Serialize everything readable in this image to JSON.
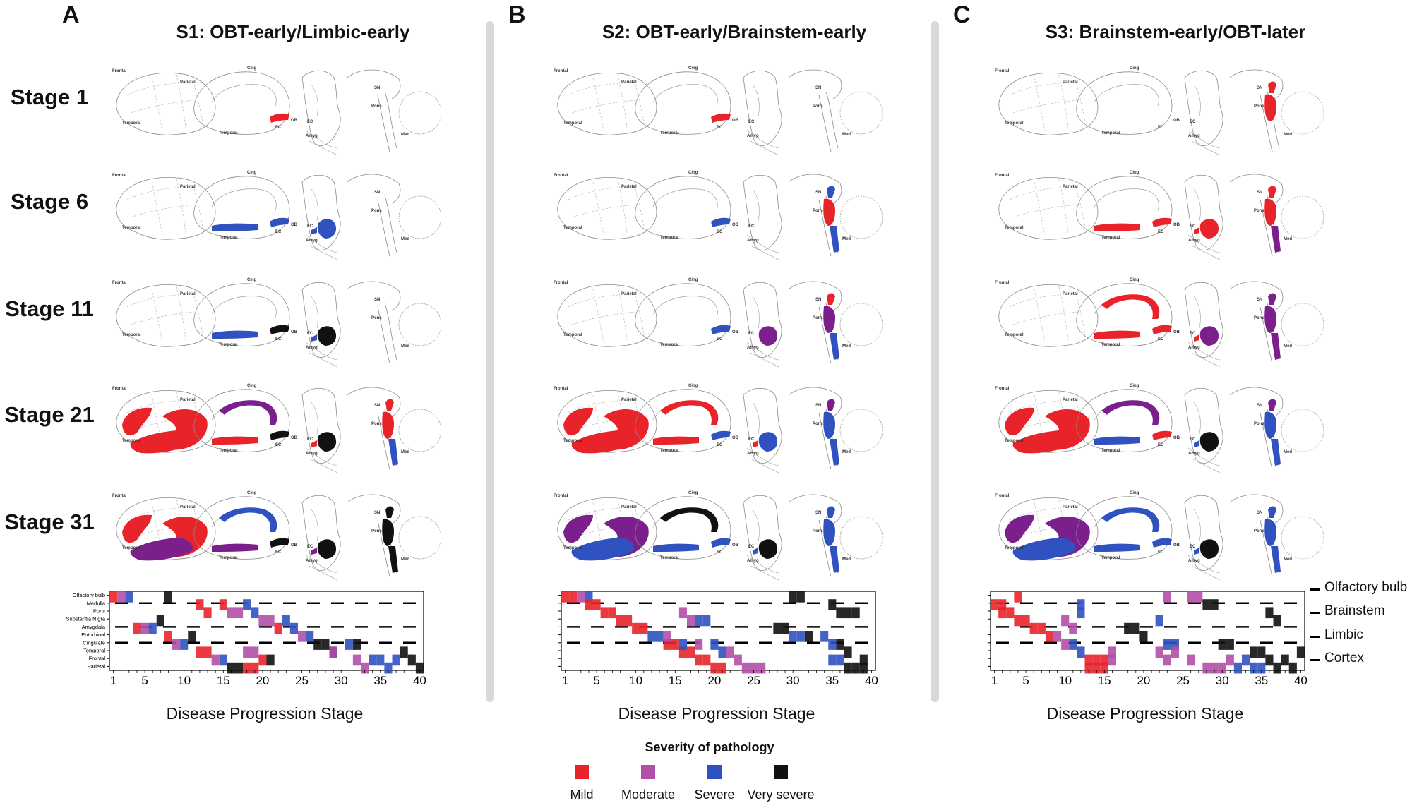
{
  "panels": [
    {
      "letter": "A",
      "title": "S1: OBT-early/Limbic-early"
    },
    {
      "letter": "B",
      "title": "S2: OBT-early/Brainstem-early"
    },
    {
      "letter": "C",
      "title": "S3: Brainstem-early/OBT-later"
    }
  ],
  "stages": [
    "Stage 1",
    "Stage 6",
    "Stage 11",
    "Stage 21",
    "Stage 31"
  ],
  "brain_labels": {
    "frontal": "Frontal",
    "parietal": "Parietal",
    "temporal": "Temporal",
    "cing": "Cing",
    "ob": "OB",
    "ec": "EC",
    "amyg": "Amyg",
    "sn": "SN",
    "pons": "Pons",
    "med": "Med"
  },
  "colors": {
    "mild": "#e8232a",
    "moderate": "#b34fa8",
    "severe": "#3052c0",
    "very_severe": "#111111",
    "purple": "#7b1f8c",
    "outline": "#8a8a8a"
  },
  "region_fills": [
    [
      {
        "lat_front": "none",
        "lat_temp": "none",
        "cing": "none",
        "ob": "mild",
        "ec": "none",
        "amyg": "none",
        "sn": "none",
        "pons": "none",
        "med": "none"
      },
      {
        "lat_front": "none",
        "lat_temp": "none",
        "cing": "none",
        "ob": "severe",
        "ec": "severe",
        "amyg": "severe",
        "sn": "none",
        "pons": "none",
        "med": "none"
      },
      {
        "lat_front": "none",
        "lat_temp": "none",
        "cing": "none",
        "ob": "very_severe",
        "ec": "severe",
        "amyg": "very_severe",
        "sn": "none",
        "pons": "none",
        "med": "none"
      },
      {
        "lat_front": "mild",
        "lat_temp": "mild",
        "cing": "purple",
        "ob": "very_severe",
        "ec": "mild",
        "amyg": "very_severe",
        "sn": "mild",
        "pons": "mild",
        "med": "severe"
      },
      {
        "lat_front": "mild",
        "lat_temp": "purple",
        "cing": "severe",
        "ob": "very_severe",
        "ec": "purple",
        "amyg": "very_severe",
        "sn": "very_severe",
        "pons": "very_severe",
        "med": "very_severe"
      }
    ],
    [
      {
        "lat_front": "none",
        "lat_temp": "none",
        "cing": "none",
        "ob": "mild",
        "ec": "none",
        "amyg": "none",
        "sn": "none",
        "pons": "none",
        "med": "none"
      },
      {
        "lat_front": "none",
        "lat_temp": "none",
        "cing": "none",
        "ob": "severe",
        "ec": "none",
        "amyg": "none",
        "sn": "severe",
        "pons": "mild",
        "med": "severe"
      },
      {
        "lat_front": "none",
        "lat_temp": "none",
        "cing": "none",
        "ob": "severe",
        "ec": "none",
        "amyg": "purple",
        "sn": "mild",
        "pons": "purple",
        "med": "severe"
      },
      {
        "lat_front": "mild",
        "lat_temp": "mild",
        "cing": "mild",
        "ob": "severe",
        "ec": "mild",
        "amyg": "severe",
        "sn": "purple",
        "pons": "severe",
        "med": "severe"
      },
      {
        "lat_front": "purple",
        "lat_temp": "severe",
        "cing": "very_severe",
        "ob": "severe",
        "ec": "severe",
        "amyg": "very_severe",
        "sn": "severe",
        "pons": "severe",
        "med": "severe"
      }
    ],
    [
      {
        "lat_front": "none",
        "lat_temp": "none",
        "cing": "none",
        "ob": "none",
        "ec": "none",
        "amyg": "none",
        "sn": "mild",
        "pons": "mild",
        "med": "none"
      },
      {
        "lat_front": "none",
        "lat_temp": "none",
        "cing": "none",
        "ob": "mild",
        "ec": "mild",
        "amyg": "mild",
        "sn": "mild",
        "pons": "mild",
        "med": "purple"
      },
      {
        "lat_front": "none",
        "lat_temp": "none",
        "cing": "mild",
        "ob": "mild",
        "ec": "mild",
        "amyg": "purple",
        "sn": "purple",
        "pons": "purple",
        "med": "purple"
      },
      {
        "lat_front": "mild",
        "lat_temp": "mild",
        "cing": "purple",
        "ob": "mild",
        "ec": "severe",
        "amyg": "very_severe",
        "sn": "purple",
        "pons": "severe",
        "med": "severe"
      },
      {
        "lat_front": "purple",
        "lat_temp": "severe",
        "cing": "severe",
        "ob": "severe",
        "ec": "severe",
        "amyg": "very_severe",
        "sn": "severe",
        "pons": "severe",
        "med": "severe"
      }
    ]
  ],
  "chart_data": {
    "type": "heatmap",
    "xlabel": "Disease Progression Stage",
    "x_ticks": [
      1,
      5,
      10,
      15,
      20,
      25,
      30,
      35,
      40
    ],
    "xlim": [
      1,
      40
    ],
    "rows": [
      "Olfactory bulb",
      "Medulla",
      "Pons",
      "Substantia Nigra",
      "Amygdala",
      "Entorhinal",
      "Cingulate",
      "Temporal",
      "Frontal",
      "Parietal"
    ],
    "groups": [
      "Olfactory bulb",
      "Brainstem",
      "Limbic",
      "Cortex"
    ],
    "severity_levels": [
      "Mild",
      "Moderate",
      "Severe",
      "Very severe"
    ],
    "panels": [
      {
        "panel": "A",
        "cells": [
          [
            0,
            1,
            1
          ],
          [
            0,
            2,
            2
          ],
          [
            0,
            3,
            3
          ],
          [
            0,
            8,
            4
          ],
          [
            1,
            12,
            1
          ],
          [
            2,
            13,
            1
          ],
          [
            1,
            15,
            1
          ],
          [
            2,
            16,
            2
          ],
          [
            2,
            17,
            2
          ],
          [
            1,
            18,
            3
          ],
          [
            2,
            19,
            3
          ],
          [
            3,
            20,
            2
          ],
          [
            3,
            21,
            2
          ],
          [
            4,
            22,
            1
          ],
          [
            3,
            23,
            3
          ],
          [
            4,
            24,
            3
          ],
          [
            5,
            25,
            2
          ],
          [
            5,
            26,
            3
          ],
          [
            6,
            27,
            4
          ],
          [
            6,
            28,
            4
          ],
          [
            7,
            29,
            4
          ],
          [
            4,
            4,
            1
          ],
          [
            4,
            5,
            2
          ],
          [
            4,
            6,
            3
          ],
          [
            3,
            7,
            4
          ],
          [
            5,
            8,
            1
          ],
          [
            6,
            9,
            2
          ],
          [
            6,
            10,
            3
          ],
          [
            5,
            11,
            4
          ],
          [
            7,
            12,
            1
          ],
          [
            7,
            13,
            1
          ],
          [
            8,
            14,
            2
          ],
          [
            8,
            15,
            3
          ],
          [
            9,
            16,
            4
          ],
          [
            9,
            17,
            4
          ],
          [
            9,
            18,
            1
          ],
          [
            9,
            19,
            1
          ],
          [
            8,
            20,
            1
          ],
          [
            7,
            18,
            2
          ],
          [
            7,
            19,
            2
          ],
          [
            8,
            21,
            4
          ],
          [
            7,
            29,
            2
          ],
          [
            6,
            31,
            3
          ],
          [
            6,
            32,
            4
          ],
          [
            8,
            32,
            2
          ],
          [
            9,
            33,
            2
          ],
          [
            8,
            34,
            3
          ],
          [
            8,
            35,
            3
          ],
          [
            9,
            36,
            3
          ],
          [
            8,
            37,
            3
          ],
          [
            7,
            38,
            4
          ],
          [
            8,
            39,
            4
          ],
          [
            9,
            40,
            4
          ]
        ]
      },
      {
        "panel": "B",
        "cells": [
          [
            0,
            1,
            1
          ],
          [
            0,
            2,
            1
          ],
          [
            0,
            3,
            2
          ],
          [
            0,
            4,
            3
          ],
          [
            1,
            4,
            1
          ],
          [
            1,
            5,
            1
          ],
          [
            2,
            6,
            1
          ],
          [
            2,
            7,
            1
          ],
          [
            3,
            8,
            1
          ],
          [
            3,
            9,
            1
          ],
          [
            4,
            10,
            1
          ],
          [
            4,
            11,
            1
          ],
          [
            5,
            12,
            3
          ],
          [
            5,
            13,
            3
          ],
          [
            6,
            14,
            1
          ],
          [
            6,
            15,
            1
          ],
          [
            7,
            16,
            1
          ],
          [
            7,
            17,
            1
          ],
          [
            8,
            18,
            1
          ],
          [
            8,
            19,
            1
          ],
          [
            9,
            20,
            1
          ],
          [
            9,
            21,
            1
          ],
          [
            7,
            22,
            2
          ],
          [
            8,
            23,
            2
          ],
          [
            9,
            24,
            2
          ],
          [
            9,
            25,
            2
          ],
          [
            9,
            26,
            2
          ],
          [
            2,
            16,
            2
          ],
          [
            3,
            17,
            2
          ],
          [
            3,
            18,
            3
          ],
          [
            3,
            19,
            3
          ],
          [
            5,
            14,
            2
          ],
          [
            6,
            16,
            3
          ],
          [
            6,
            18,
            2
          ],
          [
            6,
            20,
            3
          ],
          [
            7,
            21,
            3
          ],
          [
            4,
            28,
            4
          ],
          [
            4,
            29,
            4
          ],
          [
            5,
            30,
            3
          ],
          [
            5,
            31,
            3
          ],
          [
            5,
            32,
            4
          ],
          [
            0,
            30,
            4
          ],
          [
            0,
            31,
            4
          ],
          [
            1,
            35,
            4
          ],
          [
            2,
            36,
            4
          ],
          [
            2,
            37,
            4
          ],
          [
            2,
            38,
            4
          ],
          [
            6,
            36,
            4
          ],
          [
            7,
            37,
            4
          ],
          [
            8,
            35,
            3
          ],
          [
            8,
            36,
            3
          ],
          [
            9,
            37,
            4
          ],
          [
            9,
            38,
            4
          ],
          [
            9,
            39,
            4
          ],
          [
            8,
            39,
            4
          ],
          [
            5,
            34,
            3
          ],
          [
            6,
            35,
            3
          ]
        ]
      },
      {
        "panel": "C",
        "cells": [
          [
            0,
            4,
            1
          ],
          [
            1,
            1,
            1
          ],
          [
            1,
            2,
            1
          ],
          [
            2,
            2,
            1
          ],
          [
            2,
            3,
            1
          ],
          [
            3,
            4,
            1
          ],
          [
            3,
            5,
            1
          ],
          [
            4,
            6,
            1
          ],
          [
            4,
            7,
            1
          ],
          [
            5,
            8,
            1
          ],
          [
            5,
            9,
            2
          ],
          [
            6,
            10,
            2
          ],
          [
            6,
            11,
            3
          ],
          [
            7,
            12,
            3
          ],
          [
            3,
            10,
            2
          ],
          [
            4,
            11,
            2
          ],
          [
            2,
            12,
            3
          ],
          [
            1,
            12,
            3
          ],
          [
            3,
            22,
            3
          ],
          [
            6,
            23,
            3
          ],
          [
            6,
            24,
            3
          ],
          [
            7,
            24,
            2
          ],
          [
            0,
            23,
            2
          ],
          [
            0,
            26,
            2
          ],
          [
            0,
            27,
            2
          ],
          [
            1,
            28,
            4
          ],
          [
            1,
            29,
            4
          ],
          [
            8,
            13,
            1
          ],
          [
            8,
            14,
            1
          ],
          [
            9,
            13,
            1
          ],
          [
            9,
            14,
            1
          ],
          [
            8,
            15,
            1
          ],
          [
            9,
            15,
            1
          ],
          [
            7,
            16,
            2
          ],
          [
            8,
            16,
            2
          ],
          [
            7,
            22,
            2
          ],
          [
            8,
            23,
            2
          ],
          [
            8,
            26,
            2
          ],
          [
            9,
            28,
            2
          ],
          [
            9,
            29,
            2
          ],
          [
            9,
            30,
            2
          ],
          [
            8,
            31,
            2
          ],
          [
            9,
            32,
            3
          ],
          [
            8,
            33,
            3
          ],
          [
            9,
            34,
            3
          ],
          [
            9,
            35,
            3
          ],
          [
            8,
            36,
            4
          ],
          [
            9,
            37,
            4
          ],
          [
            8,
            38,
            4
          ],
          [
            9,
            39,
            4
          ],
          [
            7,
            40,
            4
          ],
          [
            4,
            18,
            4
          ],
          [
            4,
            19,
            4
          ],
          [
            5,
            20,
            4
          ],
          [
            6,
            30,
            4
          ],
          [
            6,
            31,
            4
          ],
          [
            7,
            34,
            4
          ],
          [
            7,
            35,
            4
          ],
          [
            2,
            36,
            4
          ],
          [
            3,
            37,
            4
          ]
        ]
      }
    ]
  },
  "legend": {
    "title": "Severity of pathology",
    "items": [
      {
        "label": "Mild",
        "color": "#e8232a"
      },
      {
        "label": "Moderate",
        "color": "#b34fa8"
      },
      {
        "label": "Severe",
        "color": "#3052c0"
      },
      {
        "label": "Very severe",
        "color": "#111111"
      }
    ]
  },
  "right_labels": [
    "Olfactory bulb",
    "Brainstem",
    "Limbic",
    "Cortex"
  ]
}
